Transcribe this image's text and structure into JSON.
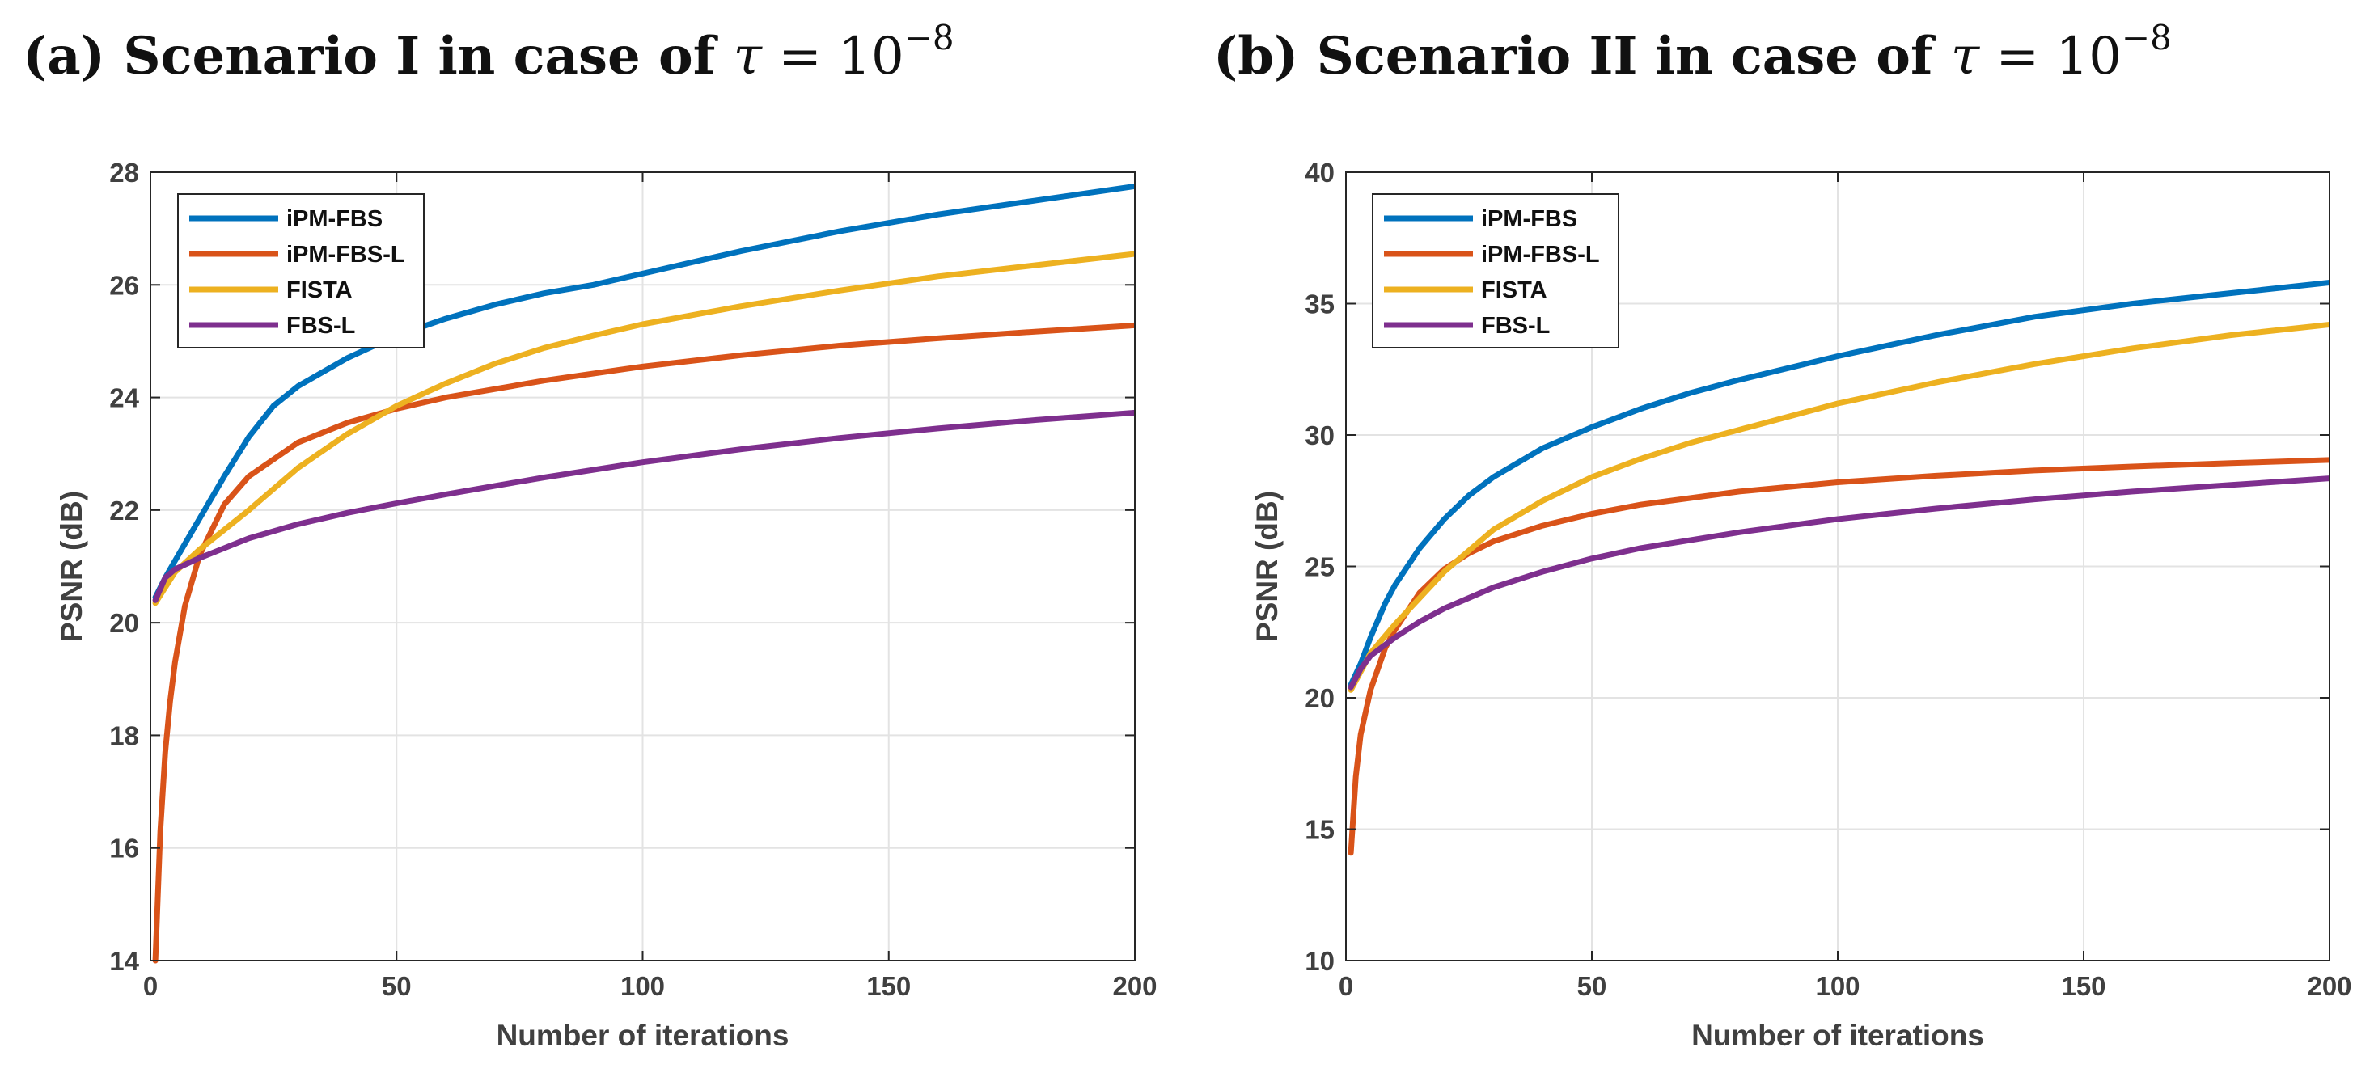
{
  "chart_data": [
    {
      "type": "line",
      "panel": "a",
      "title": {
        "prefix": "(a) Scenario I in case of ",
        "symbol": "τ",
        "equals": " = 10",
        "exponent": "−8"
      },
      "xlabel": "Number of iterations",
      "ylabel": "PSNR (dB)",
      "xlim": [
        0,
        200
      ],
      "ylim": [
        14,
        28
      ],
      "xticks": [
        0,
        50,
        100,
        150,
        200
      ],
      "yticks": [
        14,
        16,
        18,
        20,
        22,
        24,
        26,
        28
      ],
      "grid": true,
      "legend_position": "top-left",
      "series": [
        {
          "name": "iPM-FBS",
          "color": "#0072BD",
          "x": [
            1,
            3,
            5,
            10,
            15,
            20,
            25,
            30,
            40,
            50,
            60,
            70,
            80,
            90,
            100,
            120,
            140,
            160,
            180,
            200
          ],
          "y": [
            20.45,
            20.8,
            21.1,
            21.85,
            22.6,
            23.3,
            23.85,
            24.2,
            24.7,
            25.1,
            25.4,
            25.65,
            25.85,
            26.0,
            26.2,
            26.6,
            26.95,
            27.25,
            27.5,
            27.75
          ]
        },
        {
          "name": "iPM-FBS-L",
          "color": "#D95319",
          "x": [
            1,
            2,
            3,
            4,
            5,
            7,
            10,
            15,
            20,
            30,
            40,
            50,
            60,
            80,
            100,
            120,
            140,
            160,
            180,
            200
          ],
          "y": [
            14.0,
            16.3,
            17.7,
            18.6,
            19.3,
            20.3,
            21.2,
            22.1,
            22.6,
            23.2,
            23.55,
            23.8,
            24.0,
            24.3,
            24.55,
            24.75,
            24.92,
            25.05,
            25.17,
            25.28
          ]
        },
        {
          "name": "FISTA",
          "color": "#EDB120",
          "x": [
            1,
            5,
            10,
            20,
            30,
            40,
            50,
            60,
            70,
            80,
            90,
            100,
            120,
            140,
            160,
            180,
            200
          ],
          "y": [
            20.35,
            20.9,
            21.3,
            22.0,
            22.75,
            23.35,
            23.85,
            24.25,
            24.6,
            24.88,
            25.1,
            25.3,
            25.62,
            25.9,
            26.15,
            26.35,
            26.55
          ]
        },
        {
          "name": "FBS-L",
          "color": "#7E2F8E",
          "x": [
            1,
            3,
            5,
            10,
            20,
            30,
            40,
            50,
            60,
            80,
            100,
            120,
            140,
            160,
            180,
            200
          ],
          "y": [
            20.4,
            20.8,
            20.95,
            21.15,
            21.5,
            21.75,
            21.95,
            22.12,
            22.28,
            22.58,
            22.85,
            23.08,
            23.28,
            23.45,
            23.6,
            23.73
          ]
        }
      ]
    },
    {
      "type": "line",
      "panel": "b",
      "title": {
        "prefix": "(b) Scenario II in case of ",
        "symbol": "τ",
        "equals": " = 10",
        "exponent": "−8"
      },
      "xlabel": "Number of iterations",
      "ylabel": "PSNR (dB)",
      "xlim": [
        0,
        200
      ],
      "ylim": [
        10,
        40
      ],
      "xticks": [
        0,
        50,
        100,
        150,
        200
      ],
      "yticks": [
        10,
        15,
        20,
        25,
        30,
        35,
        40
      ],
      "grid": true,
      "legend_position": "top-left",
      "series": [
        {
          "name": "iPM-FBS",
          "color": "#0072BD",
          "x": [
            1,
            3,
            5,
            8,
            10,
            15,
            20,
            25,
            30,
            40,
            50,
            60,
            70,
            80,
            100,
            120,
            140,
            160,
            180,
            200
          ],
          "y": [
            20.5,
            21.3,
            22.3,
            23.6,
            24.3,
            25.7,
            26.8,
            27.7,
            28.4,
            29.5,
            30.3,
            31.0,
            31.6,
            32.1,
            33.0,
            33.8,
            34.5,
            35.0,
            35.4,
            35.8
          ]
        },
        {
          "name": "iPM-FBS-L",
          "color": "#D95319",
          "x": [
            1,
            2,
            3,
            5,
            8,
            10,
            15,
            20,
            25,
            30,
            40,
            50,
            60,
            80,
            100,
            120,
            140,
            160,
            180,
            200
          ],
          "y": [
            14.1,
            17.0,
            18.6,
            20.3,
            21.9,
            22.6,
            24.0,
            24.9,
            25.5,
            25.95,
            26.55,
            27.0,
            27.35,
            27.85,
            28.2,
            28.45,
            28.65,
            28.8,
            28.93,
            29.05
          ]
        },
        {
          "name": "FISTA",
          "color": "#EDB120",
          "x": [
            1,
            5,
            10,
            15,
            20,
            30,
            40,
            50,
            60,
            70,
            80,
            100,
            120,
            140,
            160,
            180,
            200
          ],
          "y": [
            20.3,
            21.7,
            22.8,
            23.8,
            24.8,
            26.4,
            27.5,
            28.4,
            29.1,
            29.7,
            30.2,
            31.2,
            32.0,
            32.7,
            33.3,
            33.8,
            34.2
          ]
        },
        {
          "name": "FBS-L",
          "color": "#7E2F8E",
          "x": [
            1,
            3,
            5,
            10,
            15,
            20,
            30,
            40,
            50,
            60,
            80,
            100,
            120,
            140,
            160,
            180,
            200
          ],
          "y": [
            20.4,
            21.1,
            21.6,
            22.3,
            22.9,
            23.4,
            24.2,
            24.8,
            25.3,
            25.7,
            26.3,
            26.8,
            27.2,
            27.55,
            27.85,
            28.1,
            28.35
          ]
        }
      ]
    }
  ]
}
